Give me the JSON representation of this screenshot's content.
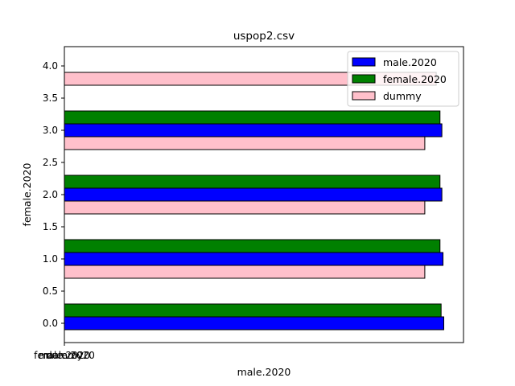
{
  "chart_data": {
    "type": "bar",
    "orientation": "horizontal",
    "title": "uspop2.csv",
    "xlabel": "male.2020",
    "ylabel": "female.2020",
    "ylim": [
      -0.3,
      4.3
    ],
    "xlim": [
      0,
      1.052
    ],
    "y_ticks": [
      "0.0",
      "0.5",
      "1.0",
      "1.5",
      "2.0",
      "2.5",
      "3.0",
      "3.5",
      "4.0"
    ],
    "x_tick_labels_overlapping": [
      "female.2020",
      "male.2020",
      "dummy"
    ],
    "legend_position": "top-right",
    "bar_height": 0.2,
    "series": [
      {
        "name": "male.2020",
        "color": "#0000ff",
        "positions": [
          0.0,
          1.0,
          2.0,
          3.0
        ],
        "values": [
          1.0,
          0.998,
          0.995,
          0.995
        ]
      },
      {
        "name": "female.2020",
        "color": "#008000",
        "positions": [
          0.2,
          1.2,
          2.2,
          3.2
        ],
        "values": [
          0.993,
          0.99,
          0.99,
          0.99
        ]
      },
      {
        "name": "dummy",
        "color": "#ffc0cb",
        "positions": [
          0.8,
          1.8,
          2.8,
          3.8
        ],
        "values": [
          0.95,
          0.95,
          0.95,
          0.98
        ]
      }
    ]
  }
}
